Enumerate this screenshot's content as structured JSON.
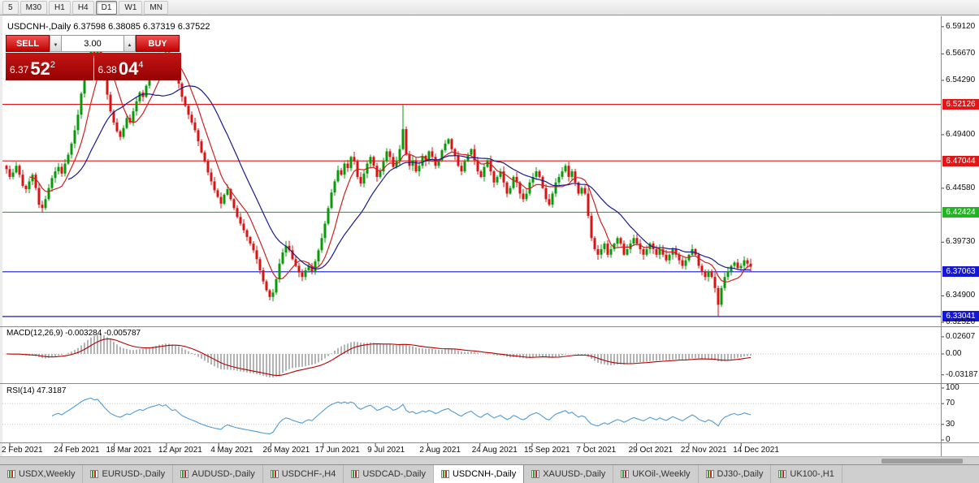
{
  "toolbar": {
    "timeframes": [
      {
        "label": "5"
      },
      {
        "label": "M30"
      },
      {
        "label": "H1"
      },
      {
        "label": "H4"
      },
      {
        "label": "D1",
        "active": true
      },
      {
        "label": "W1"
      },
      {
        "label": "MN"
      }
    ]
  },
  "chart": {
    "title": "USDCNH-,Daily 6.37598 6.38085 6.37319 6.37522"
  },
  "trade_panel": {
    "sell_label": "SELL",
    "buy_label": "BUY",
    "volume": "3.00",
    "bid": {
      "prefix": "6.37",
      "big": "52",
      "sup": "2"
    },
    "ask": {
      "prefix": "6.38",
      "big": "04",
      "sup": "4"
    }
  },
  "price_axis": {
    "ticks": [
      {
        "label": "6.59120",
        "price": 6.5912
      },
      {
        "label": "6.56670",
        "price": 6.5667
      },
      {
        "label": "6.54290",
        "price": 6.5429
      },
      {
        "label": "6.49400",
        "price": 6.494
      },
      {
        "label": "6.44580",
        "price": 6.4458
      },
      {
        "label": "6.39730",
        "price": 6.3973
      },
      {
        "label": "6.34900",
        "price": 6.349
      },
      {
        "label": "6.32520",
        "price": 6.3252
      }
    ],
    "tags": [
      {
        "label": "6.52126",
        "price": 6.52126,
        "color": "#e21616"
      },
      {
        "label": "6.47044",
        "price": 6.47044,
        "color": "#e21616"
      },
      {
        "label": "6.42424",
        "price": 6.42424,
        "color": "#22b522"
      },
      {
        "label": "6.37063",
        "price": 6.37063,
        "color": "#1616d6"
      },
      {
        "label": "6.33041",
        "price": 6.33041,
        "color": "#1616d6"
      }
    ]
  },
  "indicators": {
    "macd": {
      "label": "MACD(12,26,9) -0.003284 -0.005787",
      "axis": [
        {
          "label": "0.02607",
          "v": 0.02607
        },
        {
          "label": "0.00",
          "v": 0
        },
        {
          "label": "-0.03187",
          "v": -0.03187
        }
      ]
    },
    "rsi": {
      "label": "RSI(14) 47.3187",
      "axis": [
        {
          "label": "100",
          "v": 100
        },
        {
          "label": "70",
          "v": 70
        },
        {
          "label": "30",
          "v": 30
        },
        {
          "label": "0",
          "v": 0
        }
      ],
      "levels": [
        70,
        30
      ]
    }
  },
  "x_axis": {
    "labels": [
      "2 Feb 2021",
      "24 Feb 2021",
      "18 Mar 2021",
      "12 Apr 2021",
      "4 May 2021",
      "26 May 2021",
      "17 Jun 2021",
      "9 Jul 2021",
      "2 Aug 2021",
      "24 Aug 2021",
      "15 Sep 2021",
      "7 Oct 2021",
      "29 Oct 2021",
      "22 Nov 2021",
      "14 Dec 2021"
    ]
  },
  "tabs": [
    {
      "label": "USDX,Weekly"
    },
    {
      "label": "EURUSD-,Daily"
    },
    {
      "label": "AUDUSD-,Daily"
    },
    {
      "label": "USDCHF-,H4"
    },
    {
      "label": "USDCAD-,Daily"
    },
    {
      "label": "USDCNH-,Daily",
      "active": true
    },
    {
      "label": "XAUUSD-,Daily"
    },
    {
      "label": "UKOil-,Weekly"
    },
    {
      "label": "DJ30-,Daily"
    },
    {
      "label": "UK100-,H1"
    }
  ],
  "chart_data": {
    "type": "candlestick",
    "symbol": "USDCNH-",
    "timeframe": "Daily",
    "quote": {
      "open": 6.37598,
      "high": 6.38085,
      "low": 6.37319,
      "close": 6.37522
    },
    "ylim": [
      6.3245,
      6.5991
    ],
    "first_open": 6.466,
    "closes": [
      6.463,
      6.456,
      6.46,
      6.466,
      6.458,
      6.448,
      6.445,
      6.452,
      6.458,
      6.446,
      6.431,
      6.428,
      6.436,
      6.446,
      6.455,
      6.461,
      6.465,
      6.459,
      6.468,
      6.476,
      6.486,
      6.498,
      6.512,
      6.531,
      6.548,
      6.562,
      6.571,
      6.565,
      6.572,
      6.56,
      6.545,
      6.53,
      6.515,
      6.505,
      6.497,
      6.492,
      6.5,
      6.509,
      6.505,
      6.515,
      6.524,
      6.532,
      6.528,
      6.538,
      6.546,
      6.552,
      6.558,
      6.565,
      6.56,
      6.568,
      6.558,
      6.548,
      6.552,
      6.54,
      6.528,
      6.52,
      6.512,
      6.505,
      6.498,
      6.488,
      6.478,
      6.47,
      6.46,
      6.452,
      6.444,
      6.438,
      6.432,
      6.44,
      6.445,
      6.436,
      6.428,
      6.42,
      6.414,
      6.408,
      6.402,
      6.396,
      6.39,
      6.382,
      6.372,
      6.362,
      6.354,
      6.348,
      6.352,
      6.364,
      6.378,
      6.388,
      6.394,
      6.39,
      6.382,
      6.376,
      6.37,
      6.366,
      6.372,
      6.376,
      6.371,
      6.38,
      6.39,
      6.401,
      6.414,
      6.428,
      6.442,
      6.452,
      6.462,
      6.458,
      6.468,
      6.464,
      6.474,
      6.47,
      6.456,
      6.45,
      6.459,
      6.468,
      6.474,
      6.466,
      6.456,
      6.461,
      6.47,
      6.479,
      6.474,
      6.465,
      6.47,
      6.481,
      6.499,
      6.476,
      6.466,
      6.471,
      6.461,
      6.466,
      6.475,
      6.47,
      6.479,
      6.474,
      6.466,
      6.471,
      6.48,
      6.486,
      6.49,
      6.481,
      6.475,
      6.466,
      6.461,
      6.47,
      6.476,
      6.481,
      6.471,
      6.461,
      6.456,
      6.465,
      6.471,
      6.461,
      6.451,
      6.456,
      6.461,
      6.451,
      6.441,
      6.446,
      6.456,
      6.451,
      6.441,
      6.436,
      6.441,
      6.451,
      6.456,
      6.461,
      6.456,
      6.446,
      6.436,
      6.431,
      6.441,
      6.451,
      6.456,
      6.461,
      6.466,
      6.456,
      6.461,
      6.451,
      6.441,
      6.446,
      6.441,
      6.421,
      6.401,
      6.391,
      6.386,
      6.391,
      6.396,
      6.386,
      6.391,
      6.396,
      6.401,
      6.396,
      6.386,
      6.391,
      6.396,
      6.401,
      6.396,
      6.391,
      6.386,
      6.391,
      6.396,
      6.391,
      6.386,
      6.391,
      6.386,
      6.381,
      6.386,
      6.391,
      6.386,
      6.381,
      6.376,
      6.381,
      6.386,
      6.391,
      6.386,
      6.376,
      6.371,
      6.366,
      6.371,
      6.366,
      6.356,
      6.341,
      6.356,
      6.366,
      6.371,
      6.376,
      6.379,
      6.374,
      6.376,
      6.381,
      6.378,
      6.3752
    ],
    "wick_overrides": [
      {
        "i": 28,
        "high": 6.5775
      },
      {
        "i": 122,
        "high": 6.5212
      },
      {
        "i": 219,
        "low": 6.3304
      }
    ],
    "colors": {
      "up": "#089b08",
      "down": "#d81414",
      "ma_fast": "#d02020",
      "ma_slow": "#1a1a8c",
      "macd_hist": "#b4b4b4",
      "macd_signal": "#b40000",
      "rsi": "#4f9bd5"
    }
  }
}
